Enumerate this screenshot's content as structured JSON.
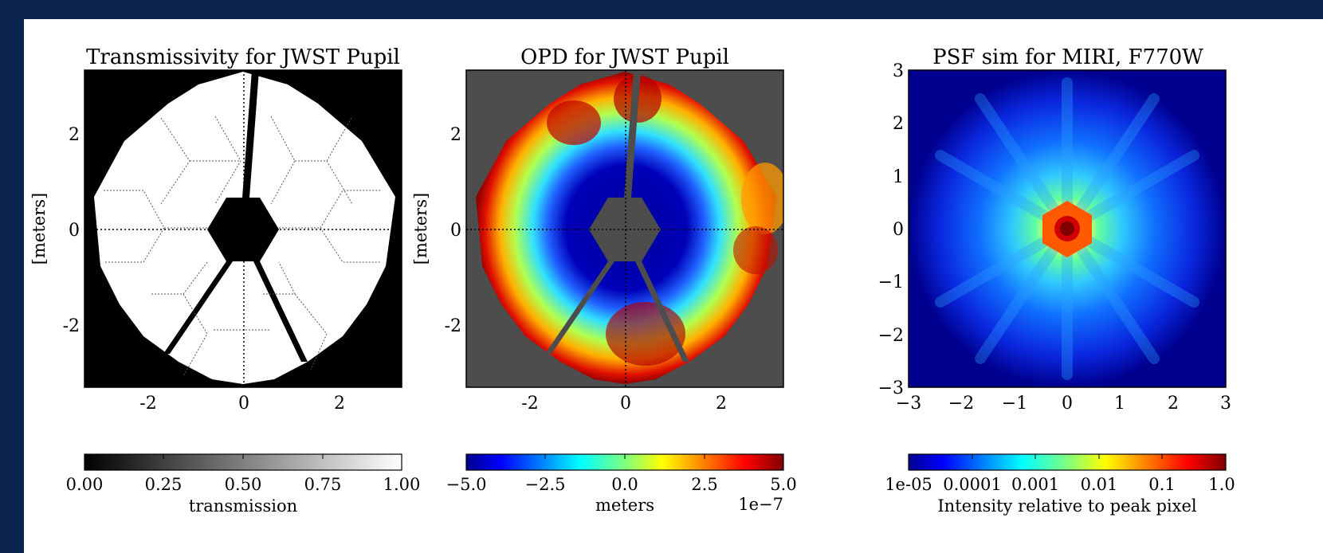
{
  "chart_data": [
    {
      "type": "heatmap",
      "title": "Transmissivity for JWST Pupil",
      "ylabel": "[meters]",
      "xlim": [
        -3.3,
        3.3
      ],
      "ylim": [
        -3.3,
        3.3
      ],
      "xticks": [
        -2,
        0,
        2
      ],
      "yticks": [
        -2,
        0,
        2
      ],
      "colorbar": {
        "label": "transmission",
        "ticks": [
          "0.00",
          "0.25",
          "0.50",
          "0.75",
          "1.00"
        ],
        "colormap": "gray"
      }
    },
    {
      "type": "heatmap",
      "title": "OPD for JWST Pupil",
      "ylabel": "[meters]",
      "xlim": [
        -3.3,
        3.3
      ],
      "ylim": [
        -3.3,
        3.3
      ],
      "xticks": [
        -2,
        0,
        2
      ],
      "yticks": [
        -2,
        0,
        2
      ],
      "colorbar": {
        "label": "meters",
        "ticks": [
          "−5.0",
          "−2.5",
          "0.0",
          "2.5",
          "5.0"
        ],
        "offset": "1e−7",
        "colormap": "jet"
      }
    },
    {
      "type": "heatmap",
      "title": "PSF sim for MIRI, F770W",
      "xlim": [
        -3,
        3
      ],
      "ylim": [
        -3,
        3
      ],
      "xticks": [
        "−3",
        "−2",
        "−1",
        "0",
        "1",
        "2",
        "3"
      ],
      "yticks": [
        "3",
        "2",
        "1",
        "0",
        "−1",
        "−2",
        "−3"
      ],
      "colorbar": {
        "label": "Intensity relative to peak pixel",
        "ticks": [
          "1e-05",
          "0.0001",
          "0.001",
          "0.01",
          "0.1",
          "1.0"
        ],
        "colormap": "jet",
        "scale": "log"
      }
    }
  ]
}
